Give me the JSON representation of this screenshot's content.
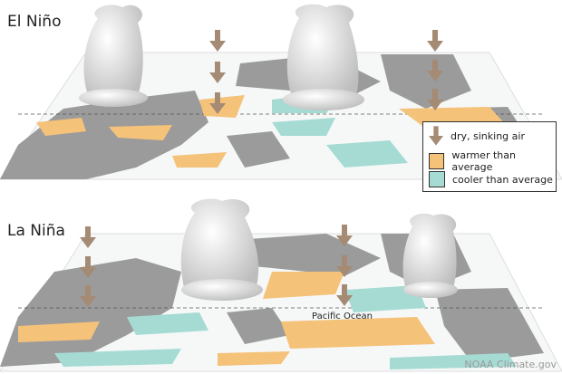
{
  "panels": [
    {
      "title": "El Niño"
    },
    {
      "title": "La Niña"
    }
  ],
  "ocean_label": "Pacific Ocean",
  "legend": {
    "items": [
      {
        "label": "dry, sinking air",
        "icon": "down-arrow-icon",
        "color": "#a58a74"
      },
      {
        "label": "warmer than average",
        "color": "#f5c27a"
      },
      {
        "label": "cooler than average",
        "color": "#a6dbd4"
      }
    ]
  },
  "colors": {
    "land": "#9b9b9b",
    "ocean": "#f6f8f8",
    "warm": "#f5c27a",
    "cool": "#a6dbd4",
    "arrow": "#a58a74",
    "cloud": "#e8e8e8"
  },
  "credit": "NOAA Climate.gov"
}
